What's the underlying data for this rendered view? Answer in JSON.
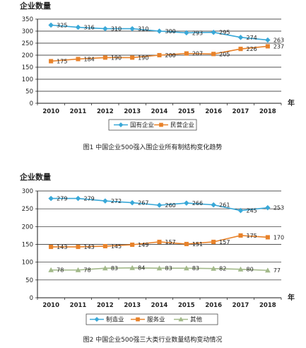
{
  "chart_data": [
    {
      "type": "line",
      "ylabel": "企业数量",
      "xunit": "年",
      "caption": "图1 中国企业500强入围企业所有制结构变化趋势",
      "x": [
        "2010",
        "2011",
        "2012",
        "2013",
        "2014",
        "2015",
        "2016",
        "2017",
        "2018"
      ],
      "yticks": [
        0,
        50,
        100,
        150,
        200,
        250,
        300,
        350
      ],
      "ylim": [
        0,
        350
      ],
      "grid": true,
      "legend_position": "bottom",
      "series": [
        {
          "name": "国有企业",
          "values": [
            325,
            316,
            310,
            310,
            300,
            293,
            295,
            274,
            263
          ],
          "color": "#39a8d8",
          "marker": "diamond"
        },
        {
          "name": "民营企业",
          "values": [
            175,
            184,
            190,
            190,
            200,
            207,
            205,
            226,
            237
          ],
          "color": "#e8822a",
          "marker": "square"
        }
      ]
    },
    {
      "type": "line",
      "ylabel": "企业数量",
      "xunit": "年",
      "caption": "图2 中国企业500强三大类行业数量结构变动情况",
      "x": [
        "2010",
        "2011",
        "2012",
        "2013",
        "2014",
        "2015",
        "2016",
        "2017",
        "2018"
      ],
      "yticks": [
        0,
        50,
        100,
        150,
        200,
        250,
        300
      ],
      "ylim": [
        0,
        300
      ],
      "grid": true,
      "legend_position": "bottom",
      "series": [
        {
          "name": "制造业",
          "values": [
            279,
            279,
            272,
            267,
            260,
            266,
            261,
            245,
            253
          ],
          "color": "#39a8d8",
          "marker": "diamond"
        },
        {
          "name": "服务业",
          "values": [
            143,
            143,
            145,
            149,
            157,
            151,
            157,
            175,
            170
          ],
          "color": "#e8822a",
          "marker": "square"
        },
        {
          "name": "其他",
          "values": [
            78,
            78,
            83,
            84,
            83,
            83,
            82,
            80,
            77
          ],
          "color": "#a2b98a",
          "marker": "triangle"
        }
      ]
    }
  ]
}
